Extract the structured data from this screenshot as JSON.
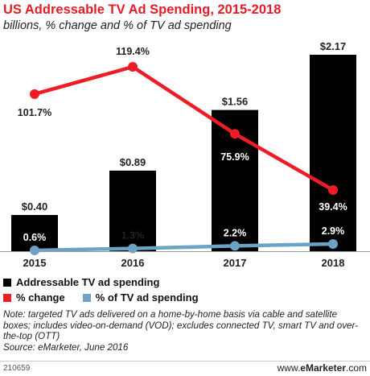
{
  "chart_data": {
    "type": "bar",
    "title": "US Addressable TV Ad Spending, 2015-2018",
    "subtitle": "billions, % change and % of TV ad spending",
    "categories": [
      "2015",
      "2016",
      "2017",
      "2018"
    ],
    "series": [
      {
        "name": "Addressable TV ad spending",
        "kind": "bar",
        "color": "#000000",
        "values": [
          0.4,
          0.89,
          1.56,
          2.17
        ],
        "labels": [
          "$0.40",
          "$0.89",
          "$1.56",
          "$2.17"
        ]
      },
      {
        "name": "% change",
        "kind": "line",
        "color": "#ee1c25",
        "values": [
          101.7,
          119.4,
          75.9,
          39.4
        ],
        "labels": [
          "101.7%",
          "119.4%",
          "75.9%",
          "39.4%"
        ]
      },
      {
        "name": "% of TV ad spending",
        "kind": "line",
        "color": "#6ba3c6",
        "values": [
          0.6,
          1.3,
          2.2,
          2.9
        ],
        "labels": [
          "0.6%",
          "1.3%",
          "2.2%",
          "2.9%"
        ]
      }
    ],
    "grid": false,
    "legend_position": "bottom-left"
  },
  "notes": {
    "note": "Note: targeted TV ads delivered on a home-by-home basis via cable and satellite boxes; includes video-on-demand (VOD); excludes connected TV, smart TV and over-the-top (OTT)",
    "source": "Source: eMarketer, June 2016"
  },
  "footer": {
    "chart_id": "210659",
    "brand_prefix": "www.",
    "brand_name": "eMarketer",
    "brand_suffix": ".com"
  }
}
